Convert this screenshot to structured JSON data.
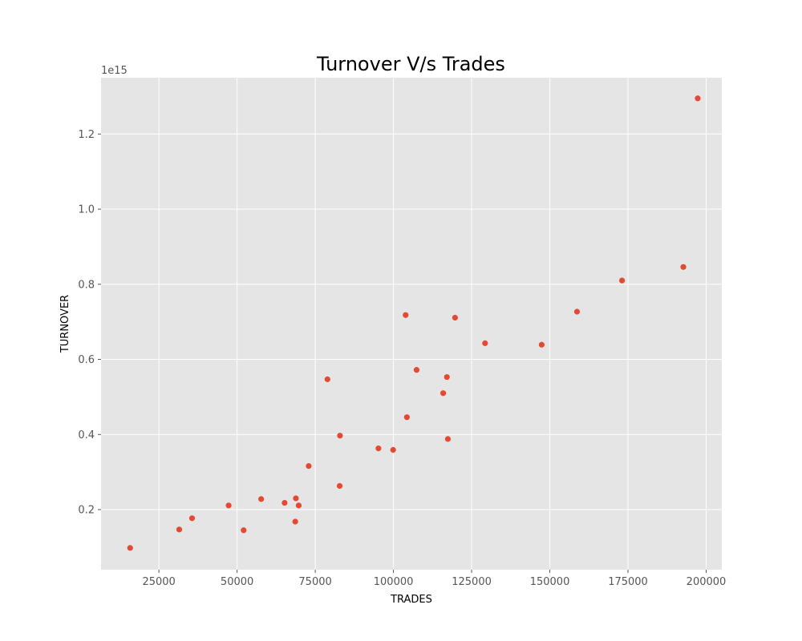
{
  "chart_data": {
    "type": "scatter",
    "title": "Turnover V/s Trades",
    "xlabel": "TRADES",
    "ylabel": "TURNOVER",
    "y_offset_label": "1e15",
    "y_scale": 1000000000000000.0,
    "xlim": [
      6500,
      205000
    ],
    "ylim": [
      0.04,
      1.35
    ],
    "x_ticks": [
      25000,
      50000,
      75000,
      100000,
      125000,
      150000,
      175000,
      200000
    ],
    "x_tick_labels": [
      "25000",
      "50000",
      "75000",
      "100000",
      "125000",
      "150000",
      "175000",
      "200000"
    ],
    "y_ticks": [
      0.2,
      0.4,
      0.6,
      0.8,
      1.0,
      1.2
    ],
    "y_tick_labels": [
      "0.2",
      "0.4",
      "0.6",
      "0.8",
      "1.0",
      "1.2"
    ],
    "grid": true,
    "style": "ggplot",
    "colors": {
      "background": "#e5e5e5",
      "grid": "#ffffff",
      "marker": "#e24a33"
    },
    "points": [
      {
        "x": 15800,
        "y": 0.098
      },
      {
        "x": 31500,
        "y": 0.147
      },
      {
        "x": 35600,
        "y": 0.177
      },
      {
        "x": 47300,
        "y": 0.211
      },
      {
        "x": 52100,
        "y": 0.145
      },
      {
        "x": 57700,
        "y": 0.228
      },
      {
        "x": 65200,
        "y": 0.218
      },
      {
        "x": 68600,
        "y": 0.168
      },
      {
        "x": 68800,
        "y": 0.23
      },
      {
        "x": 69700,
        "y": 0.211
      },
      {
        "x": 72900,
        "y": 0.316
      },
      {
        "x": 78900,
        "y": 0.547
      },
      {
        "x": 82800,
        "y": 0.263
      },
      {
        "x": 82900,
        "y": 0.397
      },
      {
        "x": 95200,
        "y": 0.363
      },
      {
        "x": 99900,
        "y": 0.359
      },
      {
        "x": 103900,
        "y": 0.718
      },
      {
        "x": 104300,
        "y": 0.446
      },
      {
        "x": 107400,
        "y": 0.572
      },
      {
        "x": 115900,
        "y": 0.51
      },
      {
        "x": 117100,
        "y": 0.553
      },
      {
        "x": 117400,
        "y": 0.388
      },
      {
        "x": 119700,
        "y": 0.711
      },
      {
        "x": 129300,
        "y": 0.643
      },
      {
        "x": 147400,
        "y": 0.639
      },
      {
        "x": 158700,
        "y": 0.727
      },
      {
        "x": 173100,
        "y": 0.81
      },
      {
        "x": 192700,
        "y": 0.846
      },
      {
        "x": 197300,
        "y": 1.295
      }
    ]
  }
}
